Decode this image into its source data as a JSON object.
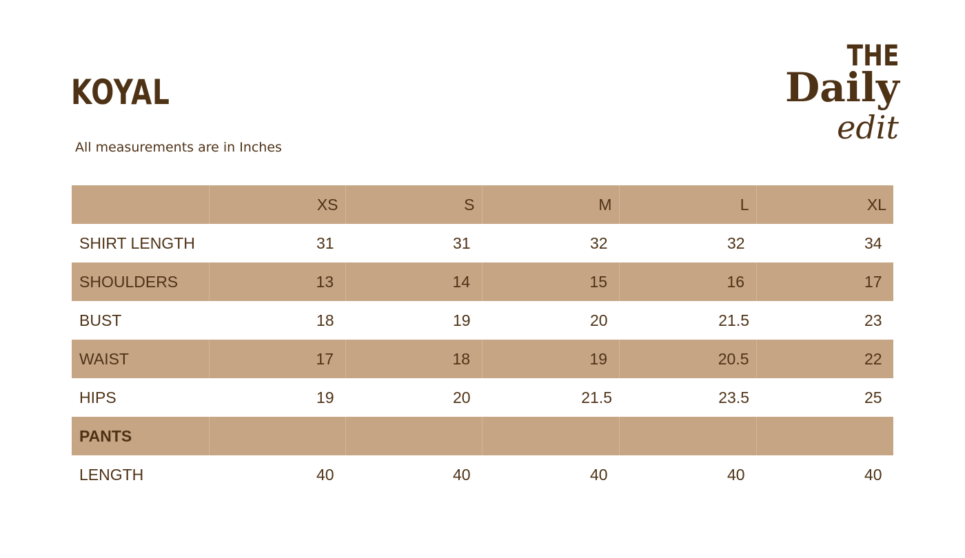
{
  "brand": {
    "name": "KOYAL"
  },
  "note": "All measurements are in Inches",
  "logo": {
    "line1": "THE",
    "line2": "Daily",
    "line3": "edit"
  },
  "colors": {
    "text": "#4e3216",
    "band": "#c6a584",
    "background": "#ffffff"
  },
  "table": {
    "sizes": [
      "XS",
      "S",
      "M",
      "L",
      "XL"
    ],
    "rows": [
      {
        "label": "SHIRT LENGTH",
        "values": [
          "31",
          "31",
          "32",
          "32",
          "34"
        ]
      },
      {
        "label": "SHOULDERS",
        "values": [
          "13",
          "14",
          "15",
          "16",
          "17"
        ]
      },
      {
        "label": "BUST",
        "values": [
          "18",
          "19",
          "20",
          "21.5",
          "23"
        ]
      },
      {
        "label": "WAIST",
        "values": [
          "17",
          "18",
          "19",
          "20.5",
          "22"
        ]
      },
      {
        "label": "HIPS",
        "values": [
          "19",
          "20",
          "21.5",
          "23.5",
          "25"
        ]
      }
    ],
    "section": {
      "label": "PANTS"
    },
    "pants_rows": [
      {
        "label": "LENGTH",
        "values": [
          "40",
          "40",
          "40",
          "40",
          "40"
        ]
      }
    ]
  }
}
